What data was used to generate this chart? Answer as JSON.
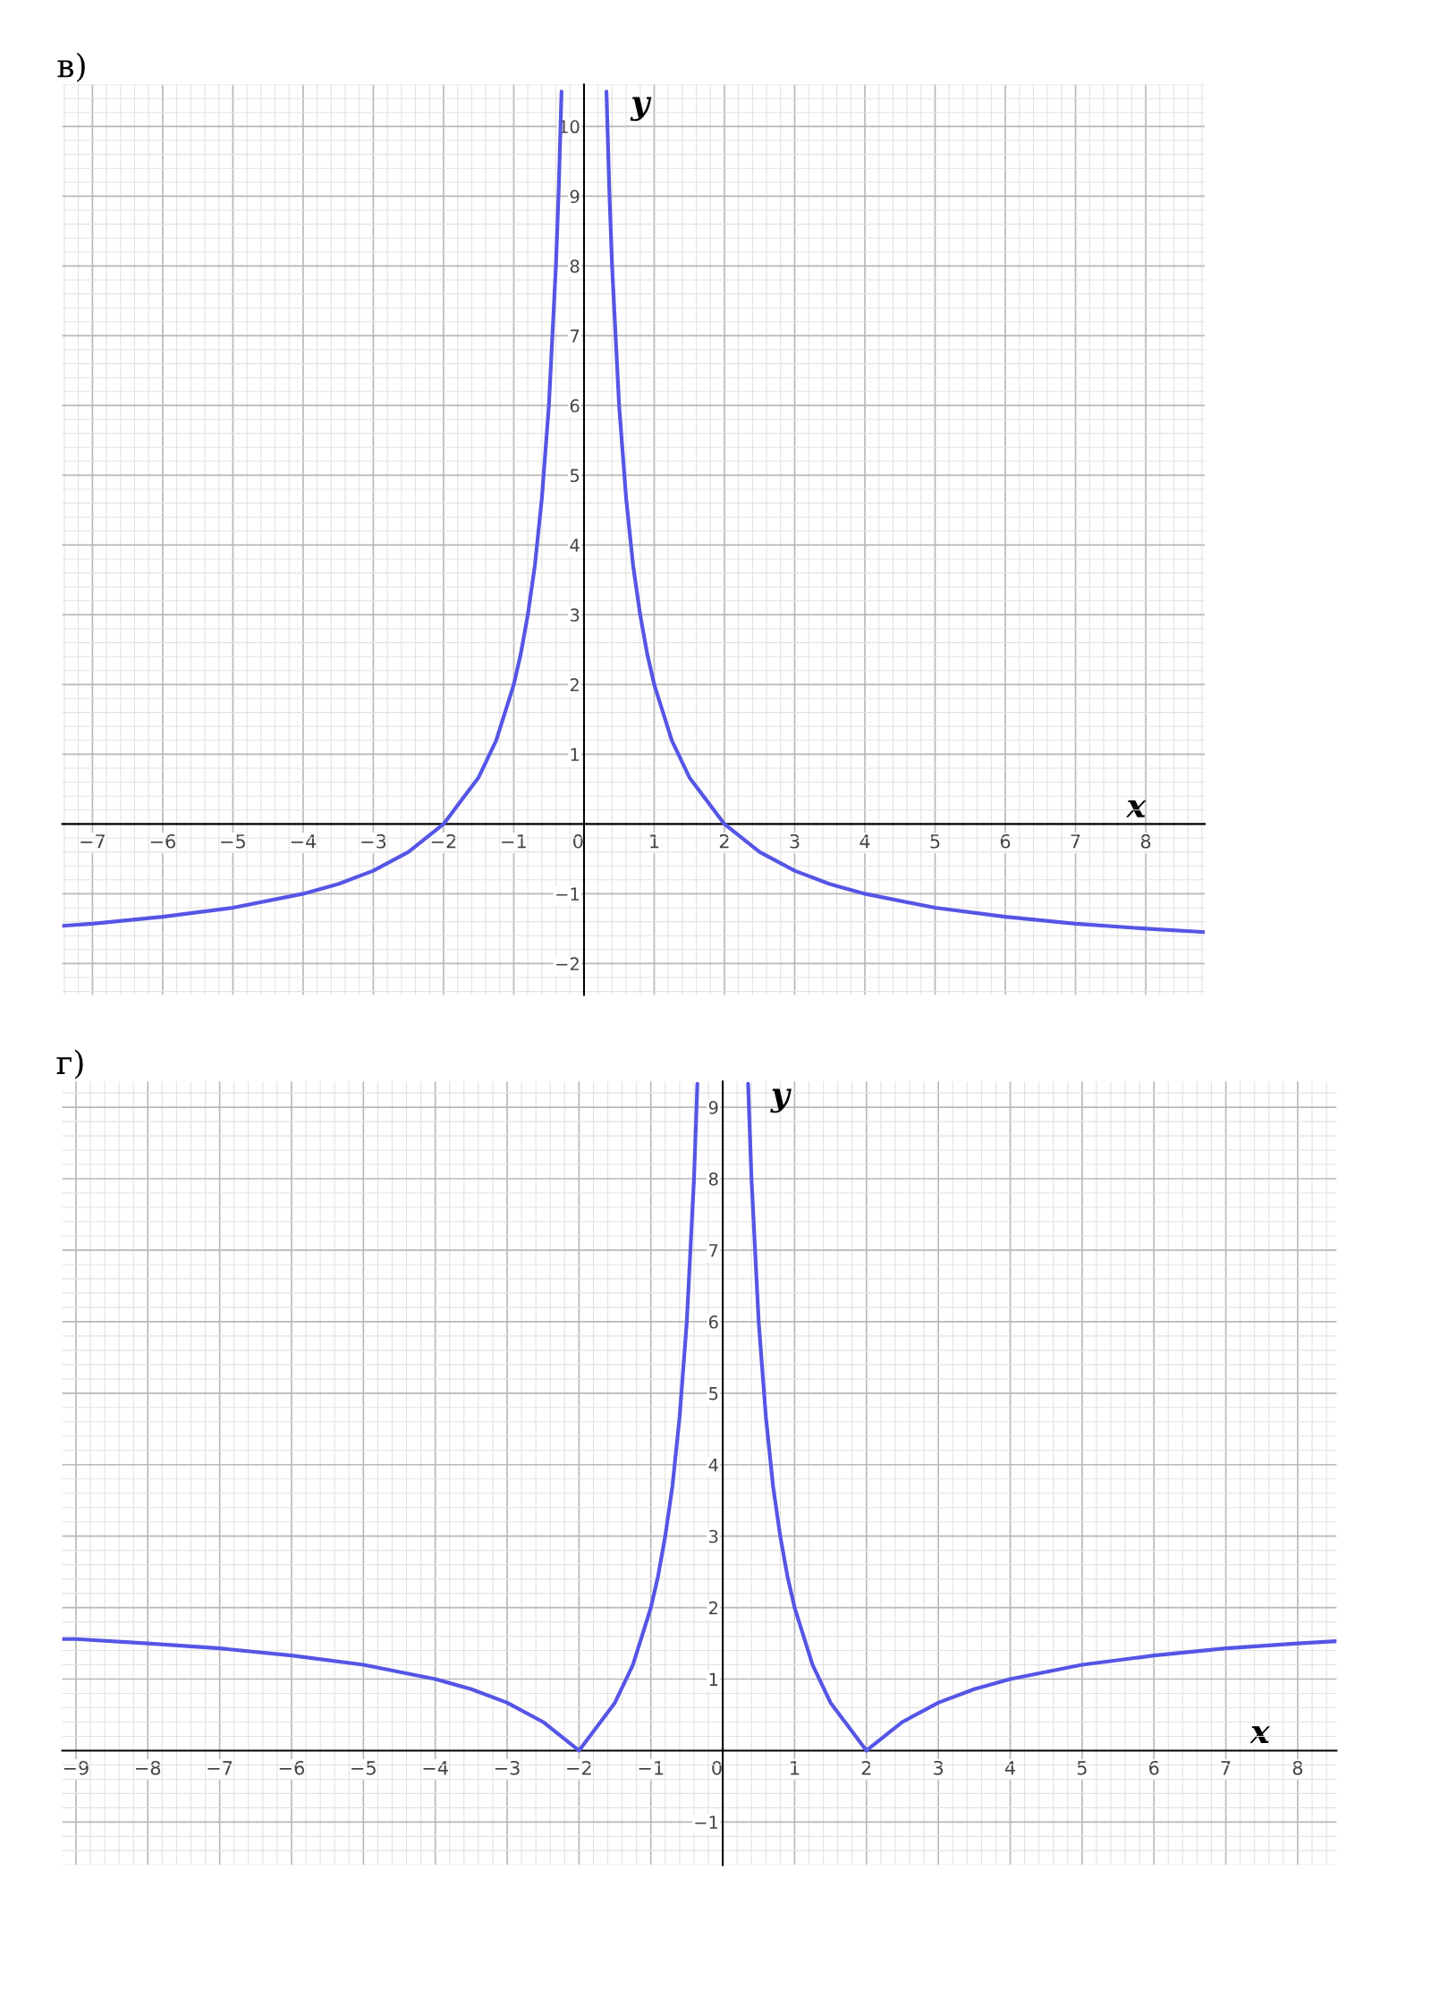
{
  "chart_data": [
    {
      "type": "line",
      "title": "в)",
      "xlabel": "x",
      "ylabel": "y",
      "xlim": [
        -7.43,
        8.84
      ],
      "ylim": [
        -2.45,
        10.6
      ],
      "xticks": [
        -7,
        -6,
        -5,
        -4,
        -3,
        -2,
        -1,
        0,
        1,
        2,
        3,
        4,
        5,
        6,
        7,
        8
      ],
      "yticks": [
        -2,
        -1,
        1,
        2,
        3,
        4,
        5,
        6,
        7,
        8,
        9,
        10
      ],
      "grid": true,
      "series": [
        {
          "color": "#5555e6",
          "x": [
            -7.43,
            -7,
            -6,
            -5,
            -4,
            -3.5,
            -3,
            -2.5,
            -2,
            -1.5,
            -1.25,
            -1,
            -0.9,
            -0.8,
            -0.7,
            -0.6,
            -0.5,
            -0.4,
            -0.36,
            -0.32,
            0,
            0.32,
            0.36,
            0.4,
            0.5,
            0.6,
            0.7,
            0.8,
            0.9,
            1,
            1.25,
            1.5,
            2,
            2.5,
            3,
            3.5,
            4,
            5,
            6,
            7,
            8,
            8.84
          ],
          "values": [
            -1.46,
            -1.43,
            -1.33,
            -1.2,
            -1,
            -0.86,
            -0.67,
            -0.4,
            0,
            0.67,
            1.2,
            2,
            2.44,
            3,
            3.7,
            4.67,
            6,
            8,
            9.1,
            10.5,
            null,
            10.5,
            9.1,
            8,
            6,
            4.67,
            3.7,
            3,
            2.44,
            2,
            1.2,
            0.67,
            0,
            -0.4,
            -0.67,
            -0.86,
            -1,
            -1.2,
            -1.33,
            -1.43,
            -1.5,
            -1.55
          ]
        }
      ]
    },
    {
      "type": "line",
      "title": "г)",
      "xlabel": "x",
      "ylabel": "y",
      "xlim": [
        -9.19,
        8.54
      ],
      "ylim": [
        -1.6,
        9.36
      ],
      "xticks": [
        -9,
        -8,
        -7,
        -6,
        -5,
        -4,
        -3,
        -2,
        -1,
        0,
        1,
        2,
        3,
        4,
        5,
        6,
        7,
        8
      ],
      "yticks": [
        -1,
        1,
        2,
        3,
        4,
        5,
        6,
        7,
        8,
        9
      ],
      "grid": true,
      "series": [
        {
          "color": "#5555e6",
          "x": [
            -9.19,
            -9,
            -8,
            -7,
            -6,
            -5,
            -4,
            -3.5,
            -3,
            -2.5,
            -2,
            -1.5,
            -1.25,
            -1,
            -0.9,
            -0.8,
            -0.7,
            -0.6,
            -0.5,
            -0.4,
            -0.353,
            0,
            0.353,
            0.4,
            0.5,
            0.6,
            0.7,
            0.8,
            0.9,
            1,
            1.25,
            1.5,
            2,
            2.5,
            3,
            3.5,
            4,
            5,
            6,
            7,
            8,
            8.54
          ],
          "values": [
            1.56,
            1.56,
            1.5,
            1.43,
            1.33,
            1.2,
            1,
            0.86,
            0.67,
            0.4,
            0,
            0.67,
            1.2,
            2,
            2.44,
            3,
            3.7,
            4.67,
            6,
            8,
            9.33,
            null,
            9.33,
            8,
            6,
            4.67,
            3.7,
            3,
            2.44,
            2,
            1.2,
            0.67,
            0,
            0.4,
            0.67,
            0.86,
            1,
            1.2,
            1.33,
            1.43,
            1.5,
            1.53
          ]
        }
      ]
    }
  ]
}
